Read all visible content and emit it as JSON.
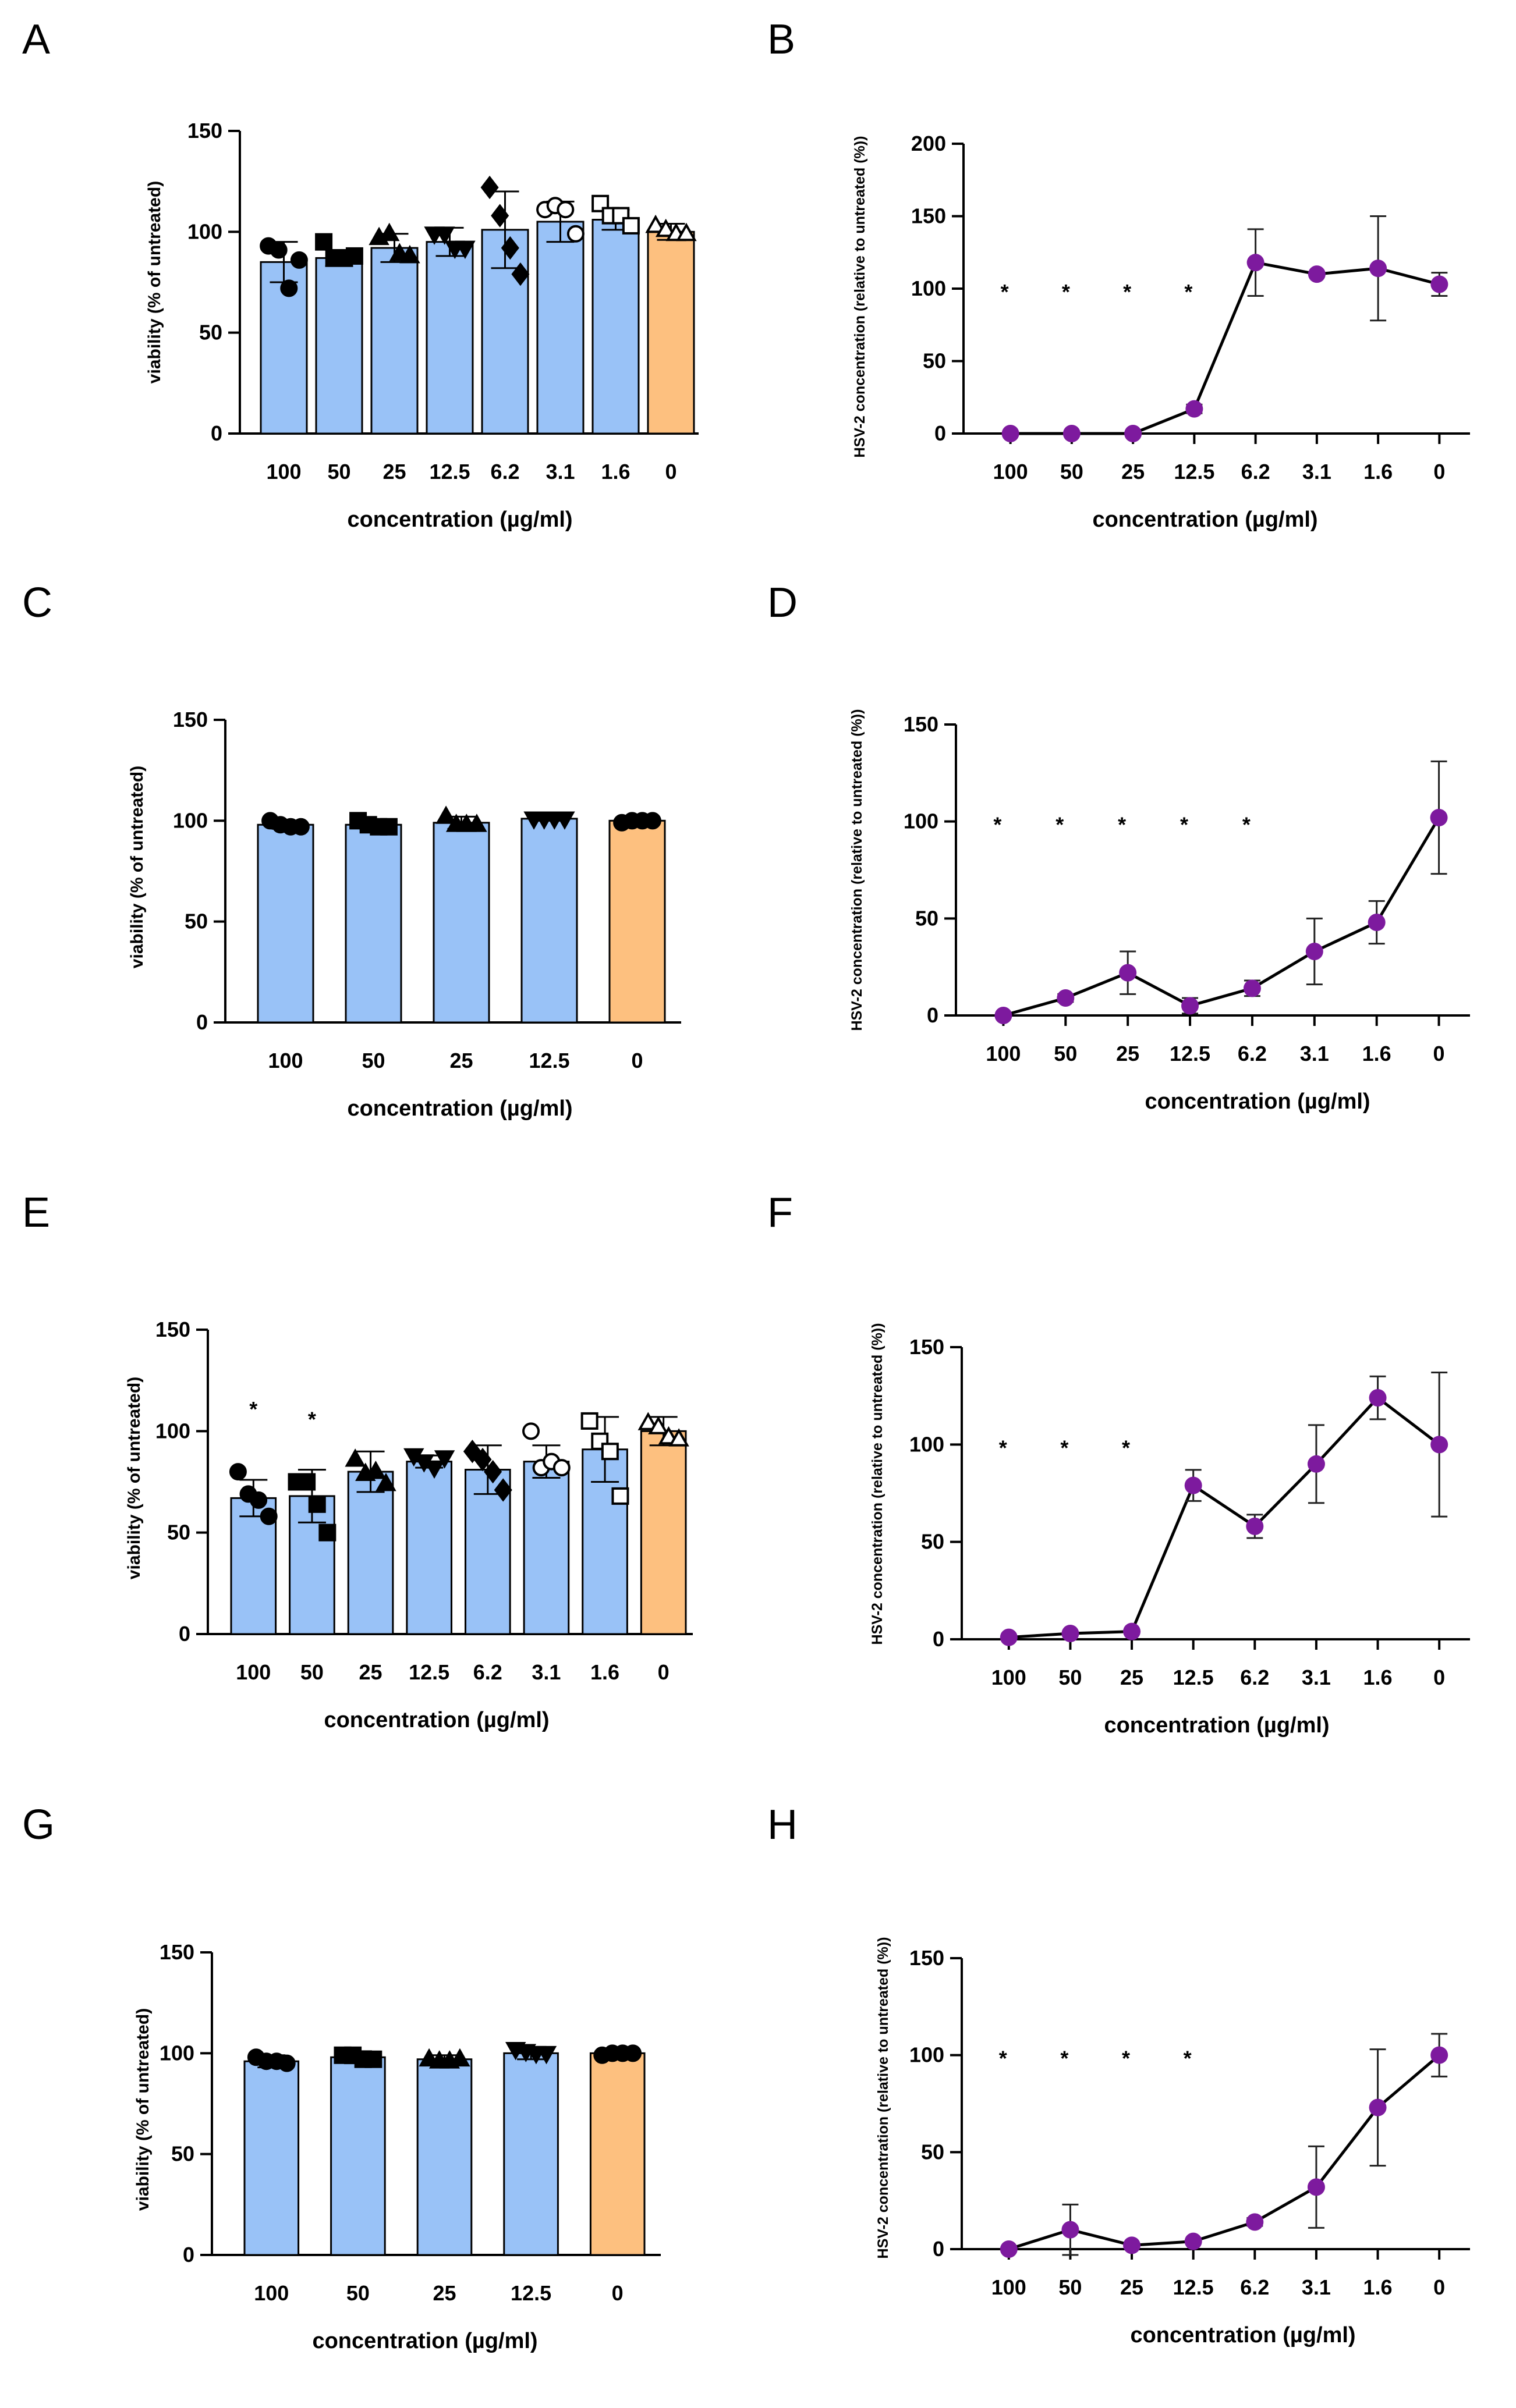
{
  "colors": {
    "bar_treated": "#99c2f7",
    "bar_control": "#fdc07f",
    "line": "#000000",
    "marker": "#7d1a9e",
    "axis": "#000000"
  },
  "chart_data": [
    {
      "panel": "A",
      "type": "bar",
      "ylabel": "viability (% of untreated)",
      "xlabel": "concentration (µg/ml)",
      "ylim": [
        0,
        150
      ],
      "yticks": [
        0,
        50,
        100,
        150
      ],
      "categories": [
        "100",
        "50",
        "25",
        "12.5",
        "6.2",
        "3.1",
        "1.6",
        "0"
      ],
      "values": [
        85,
        87,
        92,
        95,
        101,
        105,
        106,
        100
      ],
      "errors": [
        10,
        4,
        7,
        7,
        19,
        10,
        5,
        4
      ],
      "points": [
        [
          93,
          91,
          72,
          86
        ],
        [
          95,
          87,
          87,
          88
        ],
        [
          97,
          99,
          89,
          88
        ],
        [
          99,
          99,
          92,
          92
        ],
        [
          122,
          108,
          92,
          79
        ],
        [
          111,
          113,
          111,
          99
        ],
        [
          114,
          108,
          108,
          103
        ],
        [
          103,
          101,
          99,
          99
        ]
      ],
      "markers": [
        "circle",
        "square",
        "triangle",
        "triangle-down",
        "diamond",
        "circle-open",
        "square-open",
        "triangle-open"
      ],
      "significance": [
        "",
        "",
        "",
        "",
        "",
        "",
        "",
        ""
      ]
    },
    {
      "panel": "B",
      "type": "line",
      "ylabel": "HSV-2 concentration (relative to untreated (%))",
      "xlabel": "concentration (µg/ml)",
      "ylim": [
        0,
        200
      ],
      "yticks": [
        0,
        50,
        100,
        150,
        200
      ],
      "categories": [
        "100",
        "50",
        "25",
        "12.5",
        "6.2",
        "3.1",
        "1.6",
        "0"
      ],
      "values": [
        0,
        0,
        0,
        17,
        118,
        110,
        114,
        103
      ],
      "errors": [
        0,
        0,
        0,
        3,
        23,
        0,
        36,
        8
      ],
      "significance": [
        "*",
        "*",
        "*",
        "*",
        "",
        "",
        "",
        ""
      ]
    },
    {
      "panel": "C",
      "type": "bar",
      "ylabel": "viability (% of untreated)",
      "xlabel": "concentration (µg/ml)",
      "ylim": [
        0,
        150
      ],
      "yticks": [
        0,
        50,
        100,
        150
      ],
      "categories": [
        "100",
        "50",
        "25",
        "12.5",
        "0"
      ],
      "values": [
        98,
        98,
        99,
        101,
        100
      ],
      "errors": [
        2,
        2,
        3,
        1,
        1
      ],
      "points": [
        [
          100,
          98,
          97,
          97
        ],
        [
          100,
          98,
          97,
          97
        ],
        [
          102,
          98,
          98,
          98
        ],
        [
          101,
          101,
          101,
          101
        ],
        [
          99,
          100,
          100,
          100
        ]
      ],
      "markers": [
        "circle",
        "square",
        "triangle",
        "triangle-down",
        "circle"
      ],
      "significance": [
        "",
        "",
        "",
        "",
        ""
      ]
    },
    {
      "panel": "D",
      "type": "line",
      "ylabel": "HSV-2 concentration (relative to untreated (%))",
      "xlabel": "concentration (µg/ml)",
      "ylim": [
        0,
        150
      ],
      "yticks": [
        0,
        50,
        100,
        150
      ],
      "categories": [
        "100",
        "50",
        "25",
        "12.5",
        "6.2",
        "3.1",
        "1.6",
        "0"
      ],
      "values": [
        0,
        9,
        22,
        5,
        14,
        33,
        48,
        102
      ],
      "errors": [
        0,
        2,
        11,
        4,
        4,
        17,
        11,
        29
      ],
      "significance": [
        "*",
        "*",
        "*",
        "*",
        "*",
        "",
        "",
        ""
      ]
    },
    {
      "panel": "E",
      "type": "bar",
      "ylabel": "viability (% of untreated)",
      "xlabel": "concentration (µg/ml)",
      "ylim": [
        0,
        150
      ],
      "yticks": [
        0,
        50,
        100,
        150
      ],
      "categories": [
        "100",
        "50",
        "25",
        "12.5",
        "6.2",
        "3.1",
        "1.6",
        "0"
      ],
      "values": [
        67,
        68,
        80,
        85,
        81,
        85,
        91,
        100
      ],
      "errors": [
        9,
        13,
        10,
        3,
        12,
        8,
        16,
        7
      ],
      "points": [
        [
          80,
          69,
          66,
          58
        ],
        [
          75,
          75,
          64,
          50
        ],
        [
          86,
          79,
          80,
          74
        ],
        [
          88,
          85,
          82,
          87
        ],
        [
          90,
          86,
          80,
          71
        ],
        [
          100,
          82,
          85,
          82
        ],
        [
          105,
          95,
          90,
          68
        ],
        [
          104,
          102,
          97,
          96
        ]
      ],
      "markers": [
        "circle",
        "square",
        "triangle",
        "triangle-down",
        "diamond",
        "circle-open",
        "square-open",
        "triangle-open"
      ],
      "significance": [
        "*",
        "*",
        "",
        "",
        "",
        "",
        "",
        ""
      ]
    },
    {
      "panel": "F",
      "type": "line",
      "ylabel": "HSV-2 concentration (relative to untreated (%))",
      "xlabel": "concentration (µg/ml)",
      "ylim": [
        0,
        150
      ],
      "yticks": [
        0,
        50,
        100,
        150
      ],
      "categories": [
        "100",
        "50",
        "25",
        "12.5",
        "6.2",
        "3.1",
        "1.6",
        "0"
      ],
      "values": [
        1,
        3,
        4,
        79,
        58,
        90,
        124,
        100
      ],
      "errors": [
        0,
        0,
        0,
        8,
        6,
        20,
        11,
        37
      ],
      "significance": [
        "*",
        "*",
        "*",
        "",
        "",
        "",
        "",
        ""
      ]
    },
    {
      "panel": "G",
      "type": "bar",
      "ylabel": "viability (% of untreated)",
      "xlabel": "concentration (µg/ml)",
      "ylim": [
        0,
        150
      ],
      "yticks": [
        0,
        50,
        100,
        150
      ],
      "categories": [
        "100",
        "50",
        "25",
        "12.5",
        "0"
      ],
      "values": [
        96,
        98,
        97,
        100,
        100
      ],
      "errors": [
        3,
        3,
        2,
        3,
        1
      ],
      "points": [
        [
          98,
          96,
          96,
          95
        ],
        [
          99,
          99,
          97,
          97
        ],
        [
          97,
          96,
          96,
          97
        ],
        [
          102,
          101,
          100,
          100
        ],
        [
          99,
          100,
          100,
          100
        ]
      ],
      "markers": [
        "circle",
        "square",
        "triangle",
        "triangle-down",
        "circle"
      ],
      "significance": [
        "",
        "",
        "",
        "",
        ""
      ]
    },
    {
      "panel": "H",
      "type": "line",
      "ylabel": "HSV-2 concentration (relative to untreated (%))",
      "xlabel": "concentration (µg/ml)",
      "ylim": [
        0,
        150
      ],
      "yticks": [
        0,
        50,
        100,
        150
      ],
      "categories": [
        "100",
        "50",
        "25",
        "12.5",
        "6.2",
        "3.1",
        "1.6",
        "0"
      ],
      "values": [
        0,
        10,
        2,
        4,
        14,
        32,
        73,
        100
      ],
      "errors": [
        0,
        13,
        1,
        1,
        2,
        21,
        30,
        11
      ],
      "significance": [
        "*",
        "*",
        "*",
        "*",
        "",
        "",
        "",
        ""
      ]
    }
  ]
}
